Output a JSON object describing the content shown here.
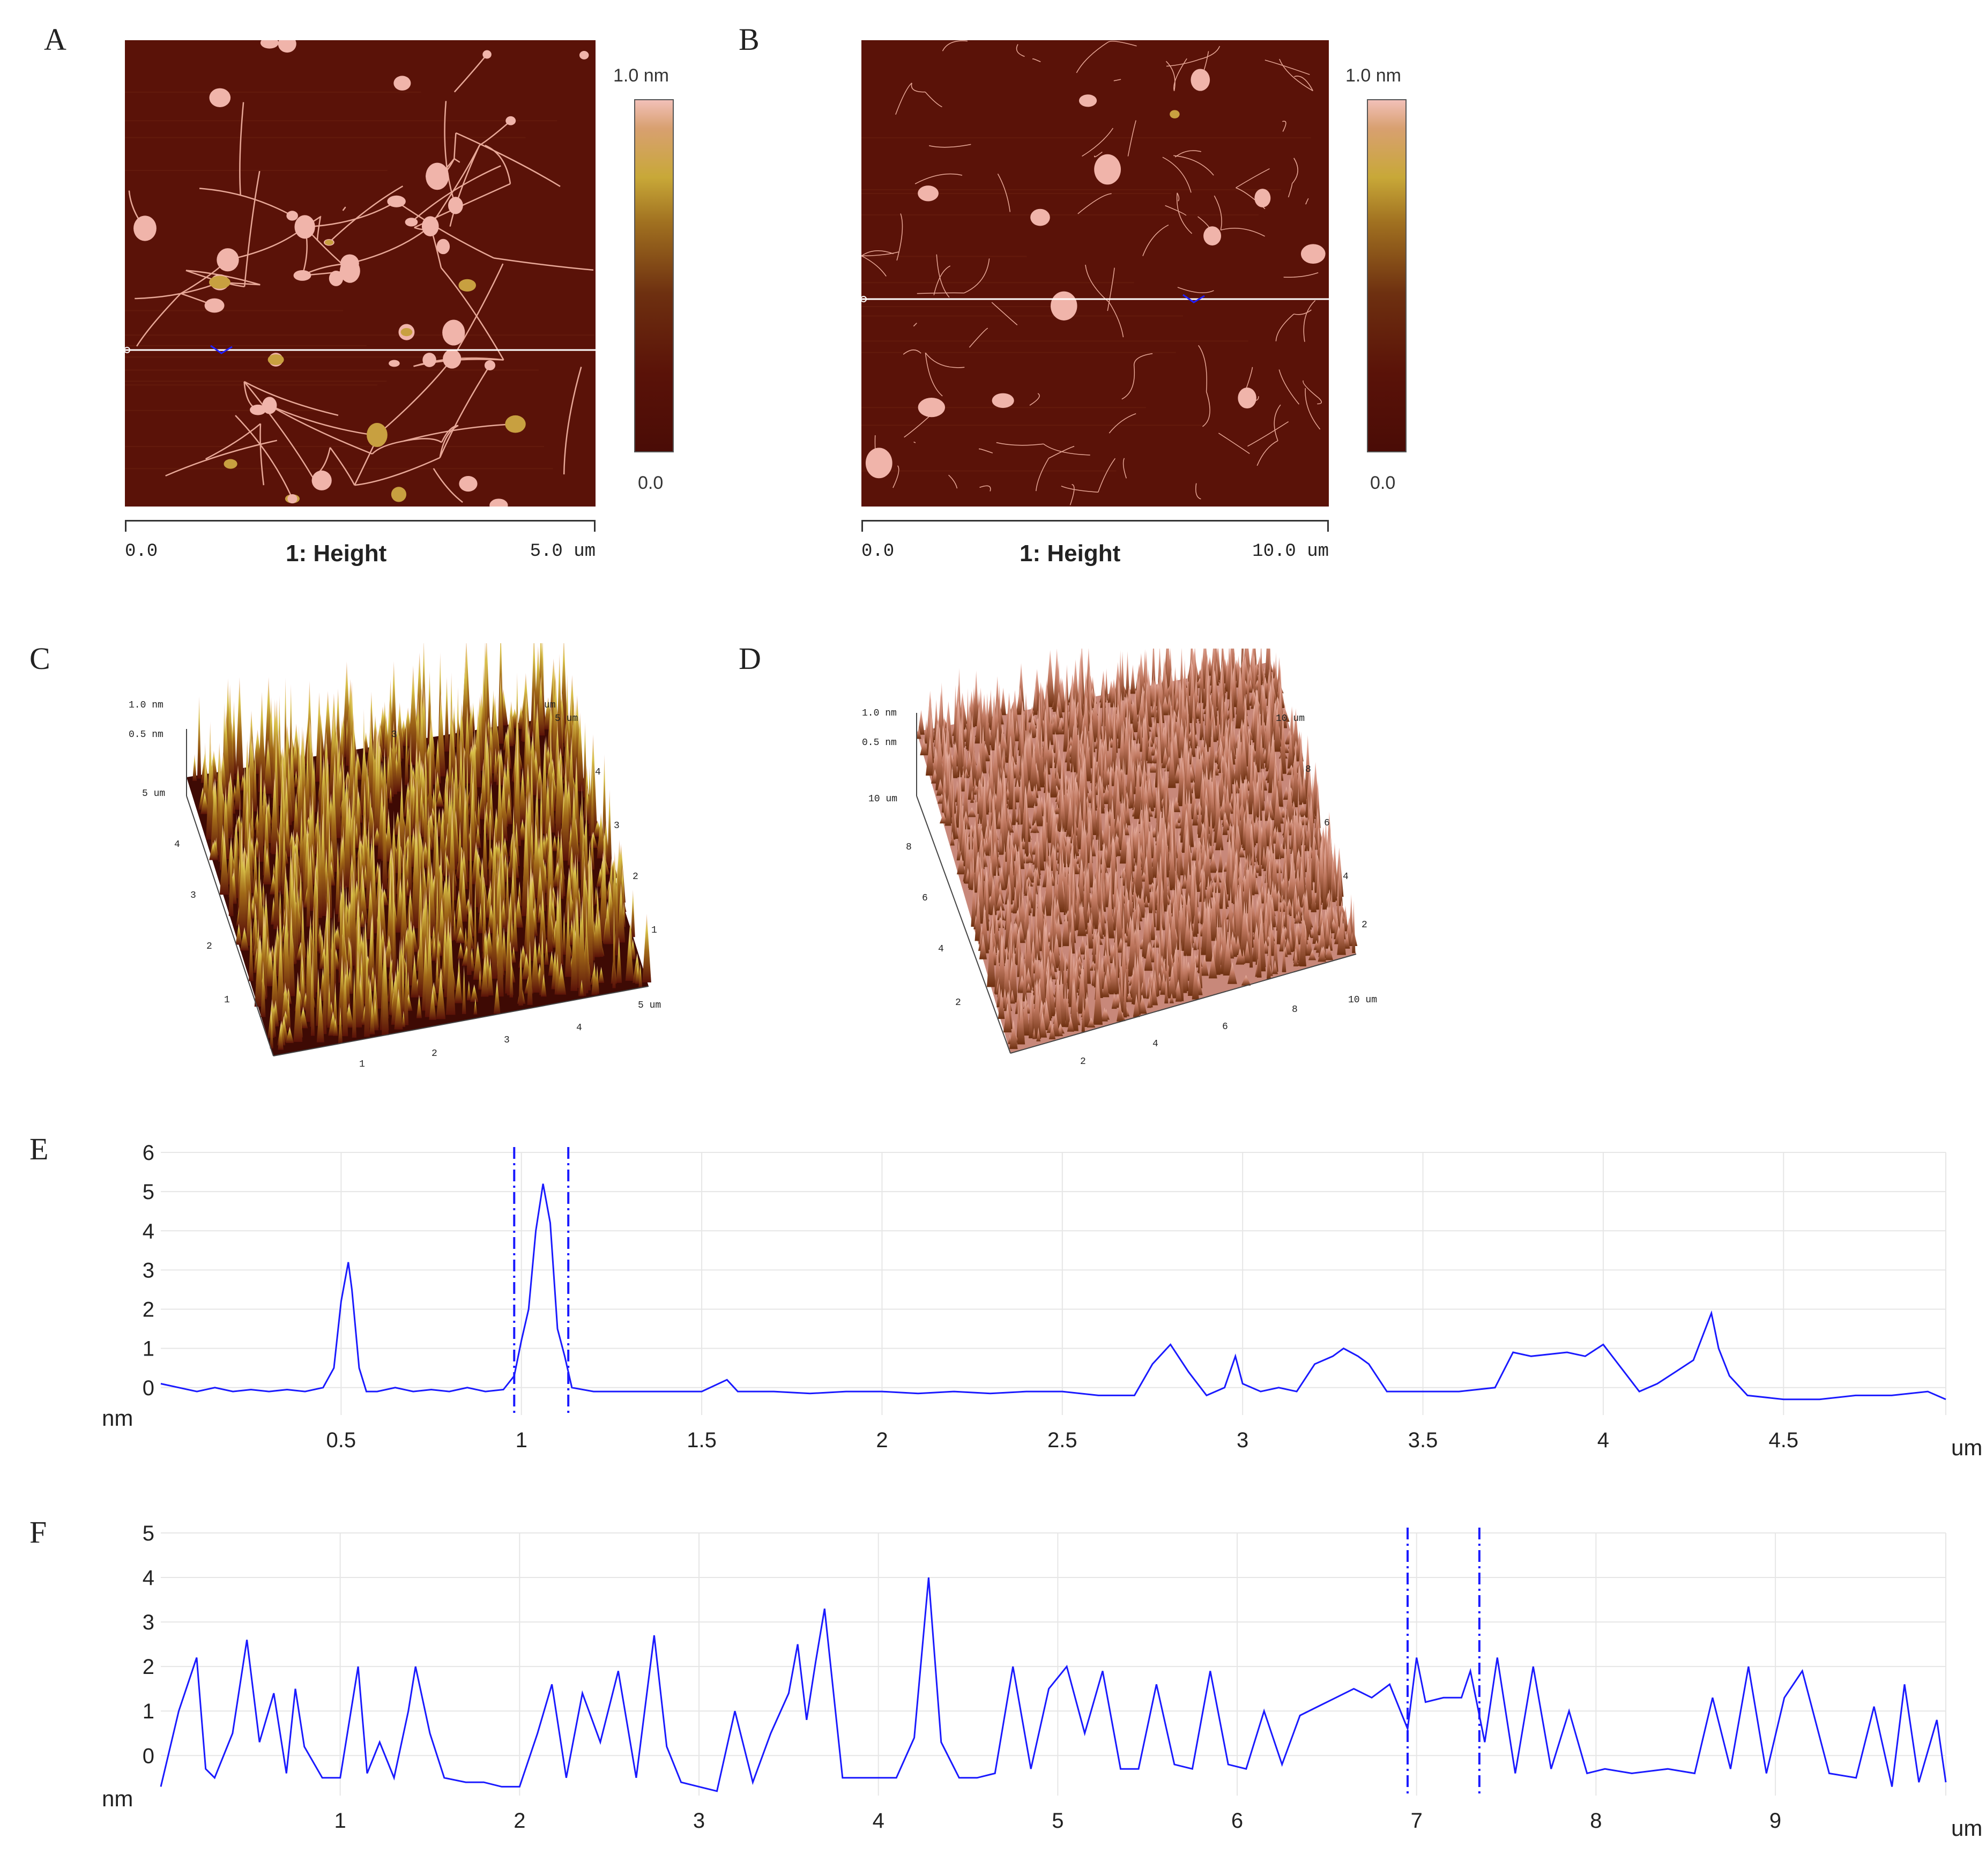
{
  "panels": {
    "A": {
      "letter": "A",
      "colorbar_max": "1.0 nm",
      "colorbar_min": "0.0",
      "scale_start": "0.0",
      "scale_end": "5.0 um",
      "scale_title": "1: Height"
    },
    "B": {
      "letter": "B",
      "colorbar_max": "1.0 nm",
      "colorbar_min": "0.0",
      "scale_start": "0.0",
      "scale_end": "10.0 um",
      "scale_title": "1: Height"
    },
    "C": {
      "letter": "C",
      "z_labels": [
        "1.0 nm",
        "0.5 nm",
        "5 um"
      ],
      "left_ticks": [
        "4",
        "3",
        "2",
        "1"
      ],
      "bottom_ticks": [
        "1",
        "2",
        "3",
        "4",
        "5 um"
      ],
      "right_ticks": [
        "5 um",
        "4",
        "3",
        "2",
        "1"
      ],
      "back_ticks": [
        "um",
        "3"
      ]
    },
    "D": {
      "letter": "D",
      "z_labels": [
        "1.0 nm",
        "0.5 nm",
        "10 um"
      ],
      "left_ticks": [
        "8",
        "6",
        "4",
        "2"
      ],
      "bottom_ticks": [
        "2",
        "4",
        "6",
        "8",
        "10 um"
      ],
      "right_ticks": [
        "10 um",
        "8",
        "6",
        "4",
        "2"
      ]
    },
    "E": {
      "letter": "E"
    },
    "F": {
      "letter": "F"
    }
  },
  "colors": {
    "afm_dark": "#5a1208",
    "afm_bright": "#f0b4aa",
    "afm_gold": "#c8a040",
    "profile_line": "#1a1aff",
    "grid": "#e6e6e6"
  },
  "chart_data": [
    {
      "panel": "E",
      "type": "line",
      "xlabel": "um",
      "ylabel": "nm",
      "xlim": [
        0,
        4.95
      ],
      "ylim": [
        -0.7,
        6
      ],
      "x_ticks": [
        "0.5",
        "1",
        "1.5",
        "2",
        "2.5",
        "3",
        "3.5",
        "4",
        "4.5"
      ],
      "y_ticks": [
        "0",
        "1",
        "2",
        "3",
        "4",
        "5",
        "6"
      ],
      "cursor_lines": [
        0.98,
        1.13
      ],
      "series": [
        {
          "x": [
            0,
            0.05,
            0.1,
            0.15,
            0.2,
            0.25,
            0.3,
            0.35,
            0.4,
            0.45,
            0.48,
            0.5,
            0.52,
            0.53,
            0.55,
            0.57,
            0.6,
            0.65,
            0.7,
            0.75,
            0.8,
            0.85,
            0.9,
            0.95,
            0.98,
            1.0,
            1.02,
            1.04,
            1.06,
            1.08,
            1.1,
            1.12,
            1.14,
            1.2,
            1.3,
            1.4,
            1.5,
            1.57,
            1.6,
            1.7,
            1.8,
            1.9,
            2.0,
            2.1,
            2.2,
            2.3,
            2.4,
            2.5,
            2.6,
            2.7,
            2.75,
            2.8,
            2.85,
            2.9,
            2.95,
            2.98,
            3.0,
            3.05,
            3.1,
            3.15,
            3.2,
            3.25,
            3.28,
            3.32,
            3.35,
            3.4,
            3.5,
            3.6,
            3.7,
            3.75,
            3.8,
            3.9,
            3.95,
            4.0,
            4.05,
            4.1,
            4.15,
            4.2,
            4.25,
            4.3,
            4.32,
            4.35,
            4.4,
            4.5,
            4.6,
            4.7,
            4.8,
            4.9,
            4.95
          ],
          "y": [
            0.1,
            0.0,
            -0.1,
            0.0,
            -0.1,
            -0.05,
            -0.1,
            -0.05,
            -0.1,
            0.0,
            0.5,
            2.2,
            3.2,
            2.5,
            0.5,
            -0.1,
            -0.1,
            0.0,
            -0.1,
            -0.05,
            -0.1,
            0.0,
            -0.1,
            -0.05,
            0.3,
            1.2,
            2.0,
            4.0,
            5.2,
            4.2,
            1.5,
            0.8,
            0.0,
            -0.1,
            -0.1,
            -0.1,
            -0.1,
            0.2,
            -0.1,
            -0.1,
            -0.15,
            -0.1,
            -0.1,
            -0.15,
            -0.1,
            -0.15,
            -0.1,
            -0.1,
            -0.2,
            -0.2,
            0.6,
            1.1,
            0.4,
            -0.2,
            0.0,
            0.8,
            0.1,
            -0.1,
            0.0,
            -0.1,
            0.6,
            0.8,
            1.0,
            0.8,
            0.6,
            -0.1,
            -0.1,
            -0.1,
            0.0,
            0.9,
            0.8,
            0.9,
            0.8,
            1.1,
            0.5,
            -0.1,
            0.1,
            0.4,
            0.7,
            1.9,
            1.0,
            0.3,
            -0.2,
            -0.3,
            -0.3,
            -0.2,
            -0.2,
            -0.1,
            -0.3
          ]
        }
      ]
    },
    {
      "panel": "F",
      "type": "line",
      "xlabel": "um",
      "ylabel": "nm",
      "xlim": [
        0,
        9.95
      ],
      "ylim": [
        -0.9,
        5
      ],
      "x_ticks": [
        "1",
        "2",
        "3",
        "4",
        "5",
        "6",
        "7",
        "8",
        "9"
      ],
      "y_ticks": [
        "0",
        "1",
        "2",
        "3",
        "4",
        "5"
      ],
      "cursor_lines": [
        6.95,
        7.35
      ],
      "series": [
        {
          "x": [
            0,
            0.1,
            0.2,
            0.25,
            0.3,
            0.4,
            0.48,
            0.55,
            0.63,
            0.7,
            0.75,
            0.8,
            0.9,
            1.0,
            1.1,
            1.15,
            1.22,
            1.3,
            1.38,
            1.42,
            1.5,
            1.58,
            1.7,
            1.8,
            1.9,
            2.0,
            2.1,
            2.18,
            2.26,
            2.35,
            2.45,
            2.55,
            2.65,
            2.75,
            2.82,
            2.9,
            3.0,
            3.1,
            3.2,
            3.3,
            3.4,
            3.5,
            3.55,
            3.6,
            3.65,
            3.7,
            3.8,
            3.9,
            4.0,
            4.1,
            4.2,
            4.28,
            4.35,
            4.45,
            4.55,
            4.65,
            4.75,
            4.85,
            4.95,
            5.05,
            5.15,
            5.25,
            5.35,
            5.45,
            5.55,
            5.65,
            5.75,
            5.85,
            5.95,
            6.05,
            6.15,
            6.25,
            6.35,
            6.45,
            6.55,
            6.65,
            6.75,
            6.85,
            6.95,
            7.0,
            7.05,
            7.15,
            7.25,
            7.3,
            7.38,
            7.45,
            7.55,
            7.65,
            7.75,
            7.85,
            7.95,
            8.05,
            8.2,
            8.4,
            8.55,
            8.65,
            8.75,
            8.85,
            8.95,
            9.05,
            9.15,
            9.3,
            9.45,
            9.55,
            9.65,
            9.72,
            9.8,
            9.9,
            9.95
          ],
          "y": [
            -0.7,
            1.0,
            2.2,
            -0.3,
            -0.5,
            0.5,
            2.6,
            0.3,
            1.4,
            -0.4,
            1.5,
            0.2,
            -0.5,
            -0.5,
            2.0,
            -0.4,
            0.3,
            -0.5,
            1.0,
            2.0,
            0.5,
            -0.5,
            -0.6,
            -0.6,
            -0.7,
            -0.7,
            0.5,
            1.6,
            -0.5,
            1.4,
            0.3,
            1.9,
            -0.5,
            2.7,
            0.2,
            -0.6,
            -0.7,
            -0.8,
            1.0,
            -0.6,
            0.5,
            1.4,
            2.5,
            0.8,
            2.1,
            3.3,
            -0.5,
            -0.5,
            -0.5,
            -0.5,
            0.4,
            4.0,
            0.3,
            -0.5,
            -0.5,
            -0.4,
            2.0,
            -0.3,
            1.5,
            2.0,
            0.5,
            1.9,
            -0.3,
            -0.3,
            1.6,
            -0.2,
            -0.3,
            1.9,
            -0.2,
            -0.3,
            1.0,
            -0.2,
            0.9,
            1.1,
            1.3,
            1.5,
            1.3,
            1.6,
            0.6,
            2.2,
            1.2,
            1.3,
            1.3,
            1.9,
            0.3,
            2.2,
            -0.4,
            2.0,
            -0.3,
            1.0,
            -0.4,
            -0.3,
            -0.4,
            -0.3,
            -0.4,
            1.3,
            -0.3,
            2.0,
            -0.4,
            1.3,
            1.9,
            -0.4,
            -0.5,
            1.1,
            -0.7,
            1.6,
            -0.6,
            0.8,
            -0.6
          ]
        }
      ]
    }
  ]
}
